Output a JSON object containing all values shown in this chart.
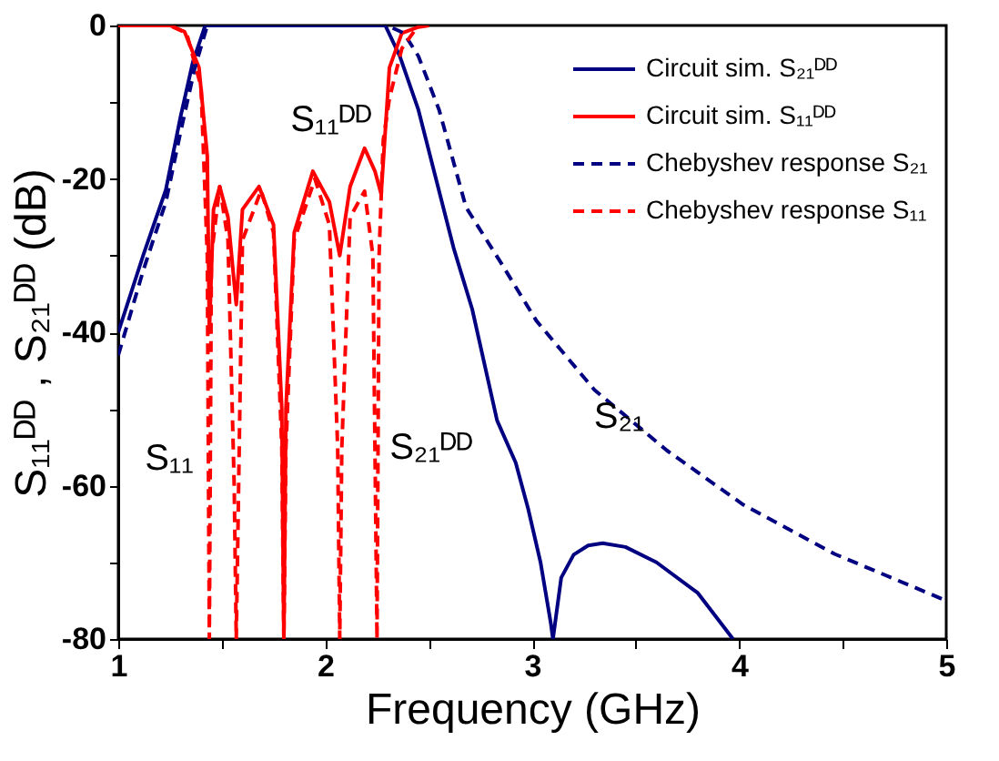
{
  "chart_data": {
    "type": "line",
    "xlabel": "Frequency (GHz)",
    "ylabel": "S₁₁ᴰᴰ , S₂₁ᴰᴰ (dB)",
    "xlim": [
      1,
      5
    ],
    "xticks": [
      1,
      {
        "value": 1.5,
        "label": null
      },
      2,
      {
        "value": 2.5,
        "label": null
      },
      3,
      {
        "value": 3.5,
        "label": null
      },
      4,
      {
        "value": 4.5,
        "label": null
      },
      5
    ],
    "ylim": [
      -80,
      0
    ],
    "yticks": [
      {
        "value": -80,
        "label": "-80"
      },
      {
        "value": -70,
        "label": null
      },
      {
        "value": -60,
        "label": "-60"
      },
      {
        "value": -50,
        "label": null
      },
      {
        "value": -40,
        "label": "-40"
      },
      {
        "value": -30,
        "label": null
      },
      {
        "value": -20,
        "label": "-20"
      },
      {
        "value": -10,
        "label": null
      },
      0
    ],
    "grid": false,
    "legend": "top right",
    "series": [
      {
        "name": "Circuit sim. S₂₁ᴰᴰ",
        "color": "#000080",
        "line_style": "solid",
        "x": [
          1.0,
          1.12,
          1.23,
          1.3,
          1.36,
          1.42,
          1.6,
          2.0,
          2.29,
          2.36,
          2.45,
          2.62,
          2.71,
          2.83,
          2.92,
          2.98,
          3.04,
          3.09,
          3.1,
          3.14,
          3.2,
          3.27,
          3.34,
          3.45,
          3.6,
          3.8,
          3.97
        ],
        "values": [
          -40,
          -30,
          -21.4,
          -12,
          -4.8,
          0,
          0,
          0,
          0,
          -4,
          -11,
          -29,
          -37,
          -51.5,
          -57,
          -63,
          -70,
          -78,
          -80,
          -72,
          -69,
          -67.8,
          -67.5,
          -68,
          -70,
          -74,
          -80
        ]
      },
      {
        "name": "Circuit sim. S₁₁ᴰᴰ",
        "color": "#ff0000",
        "line_style": "solid",
        "x": [
          1.0,
          1.25,
          1.32,
          1.39,
          1.43,
          1.44,
          1.46,
          1.49,
          1.53,
          1.57,
          1.6,
          1.68,
          1.75,
          1.79,
          1.8,
          1.81,
          1.85,
          1.94,
          2.02,
          2.07,
          2.12,
          2.19,
          2.24,
          2.27,
          2.31,
          2.37,
          2.45,
          2.5
        ],
        "values": [
          0,
          0,
          -0.8,
          -5.5,
          -17,
          -40,
          -24,
          -21,
          -25,
          -36.4,
          -24,
          -21,
          -26,
          -50,
          -80,
          -50,
          -27,
          -19,
          -23,
          -30,
          -21,
          -16,
          -19,
          -22,
          -5.5,
          -1,
          -0.2,
          0
        ]
      },
      {
        "name": "Chebyshev response S₂₁",
        "color": "#000080",
        "line_style": "dashed",
        "x": [
          1.0,
          1.12,
          1.23,
          1.3,
          1.37,
          1.43,
          1.6,
          2.0,
          2.3,
          2.38,
          2.45,
          2.55,
          2.68,
          2.85,
          3.02,
          3.3,
          3.65,
          4.02,
          4.46,
          5.0
        ],
        "values": [
          -43,
          -32,
          -23,
          -14,
          -5.5,
          0,
          0,
          0,
          0,
          -1,
          -4,
          -11,
          -23.7,
          -31,
          -38.5,
          -47.5,
          -55.4,
          -62.5,
          -68.9,
          -75
        ]
      },
      {
        "name": "Chebyshev response S₁₁",
        "color": "#ff0000",
        "line_style": "dashed",
        "x": [
          1.0,
          1.25,
          1.33,
          1.4,
          1.43,
          1.44,
          1.45,
          1.49,
          1.53,
          1.56,
          1.57,
          1.6,
          1.69,
          1.75,
          1.79,
          1.8,
          1.81,
          1.85,
          1.95,
          2.02,
          2.06,
          2.07,
          2.08,
          2.12,
          2.19,
          2.23,
          2.25,
          2.26,
          2.28,
          2.31,
          2.37,
          2.45,
          2.5
        ],
        "values": [
          0,
          0,
          -1,
          -8,
          -30,
          -80,
          -30,
          -21,
          -28,
          -60,
          -80,
          -28,
          -21.5,
          -27,
          -55,
          -80,
          -55,
          -28,
          -20,
          -26,
          -55,
          -80,
          -55,
          -25,
          -21.6,
          -30,
          -80,
          -30,
          -15,
          -9.5,
          -3,
          0,
          0
        ]
      }
    ],
    "annotations": [
      "S₁₁ᴰᴰ",
      "S₁₁",
      "S₂₁ᴰᴰ",
      {
        "text": "S₂₁",
        "x": 3.42,
        "y": -51
      }
    ]
  }
}
